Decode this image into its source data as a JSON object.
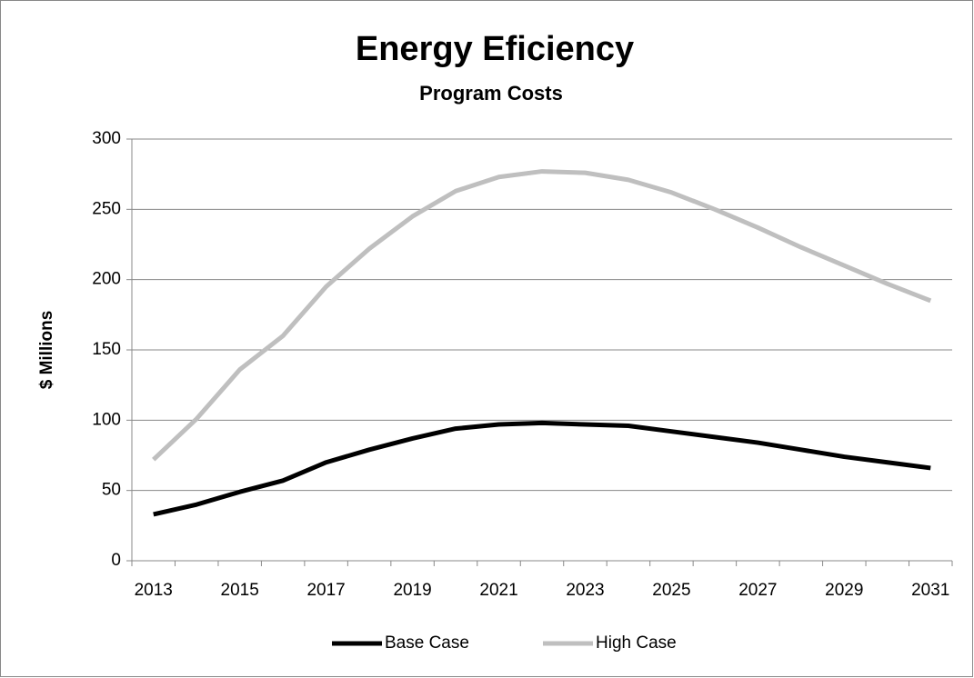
{
  "chart_data": {
    "type": "line",
    "title": "Energy Eficiency",
    "subtitle": "Program Costs",
    "y_label": "$ Millions",
    "categories": [
      "2013",
      null,
      "2015",
      null,
      "2017",
      null,
      "2019",
      null,
      "2021",
      null,
      "2023",
      null,
      "2025",
      null,
      "2027",
      null,
      "2029",
      null,
      "2031"
    ],
    "series": [
      {
        "name": "Base Case",
        "color": "#000000",
        "values": [
          33,
          40,
          49,
          57,
          70,
          79,
          87,
          94,
          97,
          98,
          97,
          96,
          92,
          88,
          84,
          79,
          74,
          70,
          66
        ]
      },
      {
        "name": "High Case",
        "color": "#bfbfbf",
        "values": [
          72,
          101,
          136,
          160,
          195,
          222,
          245,
          263,
          273,
          277,
          276,
          271,
          262,
          250,
          237,
          223,
          210,
          197,
          185
        ]
      }
    ],
    "ylim": [
      0,
      300
    ],
    "yticks": [
      0,
      50,
      100,
      150,
      200,
      250,
      300
    ],
    "grid": true,
    "legend": "bottom"
  }
}
